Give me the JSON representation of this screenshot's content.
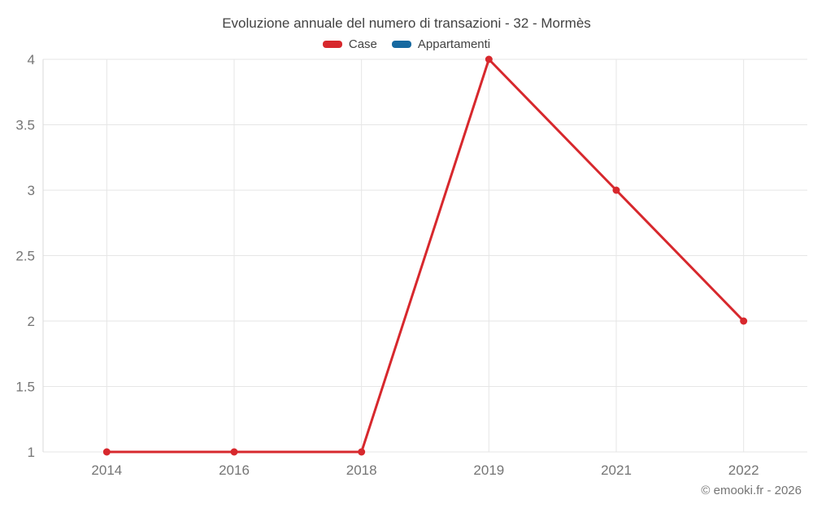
{
  "title": "Evoluzione annuale del numero di transazioni - 32 - Mormès",
  "footer": "© emooki.fr - 2026",
  "legend": [
    {
      "label": "Case",
      "color": "#d7282d"
    },
    {
      "label": "Appartamenti",
      "color": "#1769a0"
    }
  ],
  "colors": {
    "grid": "#e6e6e6",
    "axis_line": "#d9d9d9",
    "tick_label": "#757575",
    "title_text": "#424242"
  },
  "chart_data": {
    "type": "line",
    "title": "Evoluzione annuale del numero di transazioni - 32 - Mormès",
    "categories": [
      "2014",
      "2016",
      "2018",
      "2019",
      "2021",
      "2022"
    ],
    "series": [
      {
        "name": "Case",
        "color": "#d7282d",
        "values": [
          1,
          1,
          1,
          4,
          3,
          2
        ]
      },
      {
        "name": "Appartamenti",
        "color": "#1769a0",
        "values": []
      }
    ],
    "xlabel": "",
    "ylabel": "",
    "ylim": [
      1,
      4
    ],
    "ytick_step": 0.5,
    "yticks": [
      "1",
      "1.5",
      "2",
      "2.5",
      "3",
      "3.5",
      "4"
    ],
    "grid": true,
    "legend_position": "top"
  }
}
